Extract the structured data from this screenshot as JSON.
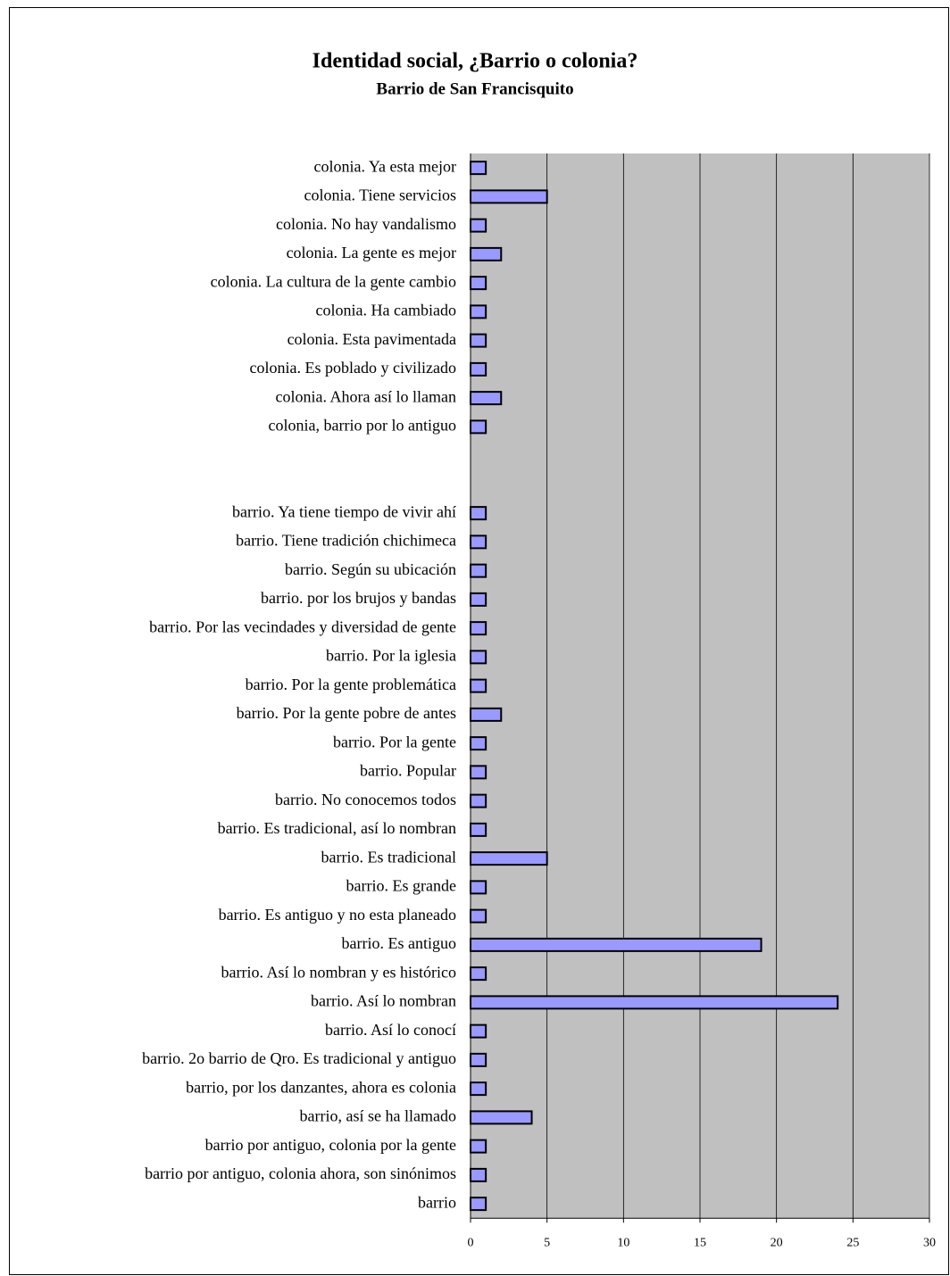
{
  "chart_data": {
    "type": "barh",
    "title": "Identidad social, ¿Barrio o colonia?",
    "subtitle": "Barrio de San Francisquito",
    "categories": [
      "colonia. Ya esta mejor",
      "colonia. Tiene servicios",
      "colonia. No hay vandalismo",
      "colonia. La gente es mejor",
      "colonia. La cultura de la gente cambio",
      "colonia. Ha cambiado",
      "colonia. Esta pavimentada",
      "colonia. Es poblado y civilizado",
      "colonia. Ahora así lo llaman",
      "colonia, barrio por lo antiguo",
      null,
      null,
      "barrio. Ya tiene tiempo de vivir ahí",
      "barrio. Tiene tradición chichimeca",
      "barrio. Según su ubicación",
      "barrio. por los brujos y bandas",
      "barrio. Por las vecindades y diversidad de gente",
      "barrio. Por la iglesia",
      "barrio. Por la gente problemática",
      "barrio. Por la gente pobre de antes",
      "barrio. Por la gente",
      "barrio. Popular",
      "barrio. No conocemos todos",
      "barrio. Es tradicional, así lo nombran",
      "barrio. Es tradicional",
      "barrio. Es grande",
      "barrio. Es antiguo y no esta planeado",
      "barrio. Es antiguo",
      "barrio. Así lo nombran y es histórico",
      "barrio. Así lo nombran",
      "barrio. Así lo conocí",
      "barrio. 2o barrio de Qro. Es tradicional y antiguo",
      "barrio, por los danzantes, ahora es colonia",
      "barrio, así se ha llamado",
      "barrio por antiguo, colonia por la gente",
      "barrio por antiguo, colonia ahora, son sinónimos",
      "barrio"
    ],
    "values": [
      1,
      5,
      1,
      2,
      1,
      1,
      1,
      1,
      2,
      1,
      null,
      null,
      1,
      1,
      1,
      1,
      1,
      1,
      1,
      2,
      1,
      1,
      1,
      1,
      5,
      1,
      1,
      19,
      1,
      24,
      1,
      1,
      1,
      4,
      1,
      1,
      1
    ],
    "color": "#9999ff",
    "background": "#c0c0c0",
    "xlim": [
      0,
      30
    ],
    "xticks": [
      0,
      5,
      10,
      15,
      20,
      25,
      30
    ],
    "grid": true
  }
}
